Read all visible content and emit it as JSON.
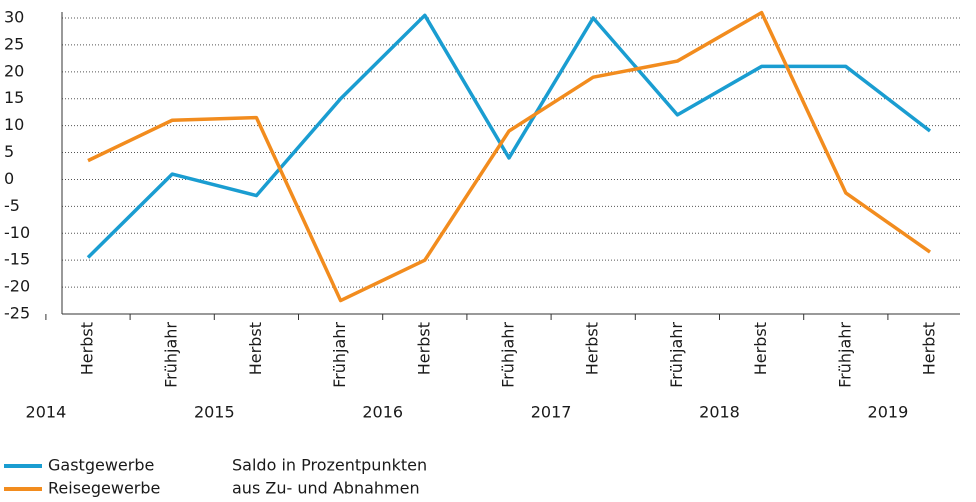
{
  "chart_data": {
    "type": "line",
    "categories": [
      "Herbst",
      "Frühjahr",
      "Herbst",
      "Frühjahr",
      "Herbst",
      "Frühjahr",
      "Herbst",
      "Frühjahr",
      "Herbst",
      "Frühjahr",
      "Herbst"
    ],
    "year_groups": [
      "2014",
      "2015",
      "2016",
      "2017",
      "2018",
      "2019"
    ],
    "series": [
      {
        "name": "Gastgewerbe",
        "color": "#1a9dd1",
        "values": [
          -14.5,
          1,
          -3,
          15,
          30.5,
          4,
          30,
          12,
          21,
          21,
          9
        ]
      },
      {
        "name": "Reisegewerbe",
        "color": "#f28c1e",
        "values": [
          3.5,
          11,
          11.5,
          -22.5,
          -15,
          9,
          19,
          22,
          31,
          -2.5,
          -13.5
        ]
      }
    ],
    "ylim": [
      -25,
      30
    ],
    "yticks": [
      -25,
      -20,
      -15,
      -10,
      -5,
      0,
      5,
      10,
      15,
      20,
      25,
      30
    ],
    "grid": true,
    "note": [
      "Saldo in Prozentpunkten",
      "aus Zu- und Abnahmen"
    ]
  }
}
